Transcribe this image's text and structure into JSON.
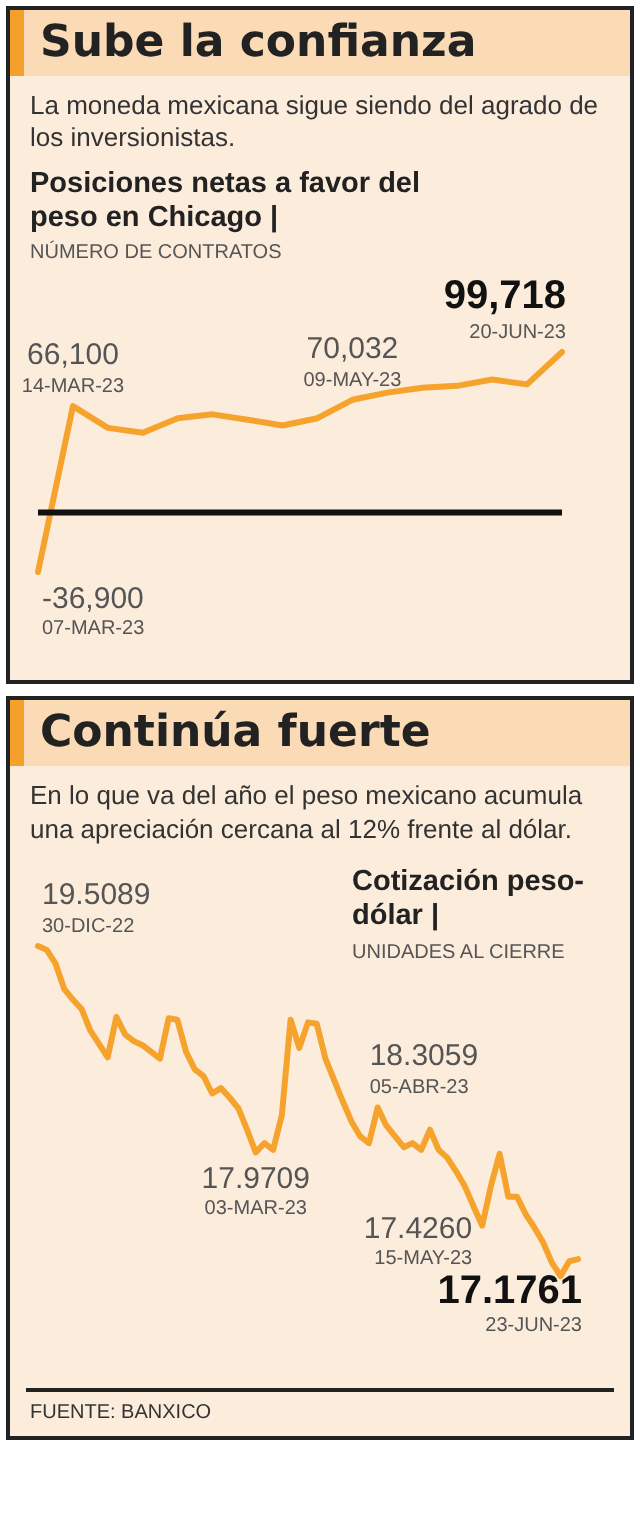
{
  "chart_data": [
    {
      "type": "line",
      "title": "Sube la confianza",
      "subtitle": "La moneda mexicana sigue siendo del agrado de los inversionistas.",
      "ylabel": "Posiciones netas a favor del peso en Chicago |",
      "categories": [
        null,
        null,
        null,
        null,
        null,
        null,
        null,
        null,
        null,
        null,
        null,
        null,
        null,
        null,
        null,
        null
      ],
      "values": [
        -36900,
        66100,
        52600,
        49600,
        58600,
        61000,
        57700,
        54100,
        58600,
        70032,
        74500,
        77500,
        78700,
        82600,
        79600,
        99718
      ],
      "value_labels": [
        "-36,900",
        "66,100",
        null,
        null,
        null,
        null,
        null,
        null,
        null,
        "70,032",
        null,
        null,
        null,
        null,
        null,
        "99,718"
      ],
      "color": "#f5a32c",
      "ref_lines": [
        {
          "axis": "y",
          "value": 0,
          "color": "#111111"
        }
      ],
      "tick_labels": false,
      "annotations": [
        "NÚMERO DE CONTRATOS",
        "07-MAR-23",
        "14-MAR-23",
        "09-MAY-23",
        "20-JUN-23"
      ]
    },
    {
      "type": "line",
      "title": "Continúa fuerte",
      "subtitle": "En lo que va del año el peso mexicano acumula una apreciación cercana al 12% frente al dólar.",
      "ylabel": "Cotización peso-dólar |",
      "categories": [
        null,
        null,
        null,
        null,
        null,
        null,
        null,
        null,
        null,
        null,
        null,
        null,
        null,
        null,
        null,
        null,
        null,
        null,
        null,
        null,
        null,
        null,
        null,
        null,
        null,
        null,
        null,
        null,
        null,
        null,
        null,
        null,
        null,
        null,
        null,
        null,
        null,
        null,
        null,
        null,
        null,
        null,
        null,
        null,
        null,
        null,
        null,
        null,
        null,
        null,
        null,
        null,
        null,
        null,
        null,
        null,
        null,
        null,
        null,
        null,
        null,
        null,
        null
      ],
      "values": [
        19.5089,
        19.48,
        19.38,
        19.19,
        19.11,
        19.04,
        18.88,
        18.78,
        18.68,
        18.98,
        18.85,
        18.8,
        18.77,
        18.72,
        18.67,
        18.97,
        18.96,
        18.72,
        18.59,
        18.54,
        18.41,
        18.45,
        18.38,
        18.3,
        18.14,
        17.9709,
        18.04,
        17.99,
        18.25,
        18.96,
        18.75,
        18.94,
        18.93,
        18.67,
        18.51,
        18.35,
        18.2,
        18.09,
        18.04,
        18.3059,
        18.17,
        18.09,
        18.01,
        18.04,
        17.99,
        18.14,
        17.99,
        17.93,
        17.83,
        17.72,
        17.57,
        17.426,
        17.72,
        17.96,
        17.64,
        17.64,
        17.51,
        17.41,
        17.3,
        17.15,
        17.05,
        17.16,
        17.1761
      ],
      "value_labels": [
        "19.5089",
        null,
        null,
        null,
        null,
        null,
        null,
        null,
        null,
        null,
        null,
        null,
        null,
        null,
        null,
        null,
        null,
        null,
        null,
        null,
        null,
        null,
        null,
        null,
        null,
        "17.9709",
        null,
        null,
        null,
        null,
        null,
        null,
        null,
        null,
        null,
        null,
        null,
        null,
        null,
        "18.3059",
        null,
        null,
        null,
        null,
        null,
        null,
        null,
        null,
        null,
        null,
        null,
        "17.4260",
        null,
        null,
        null,
        null,
        null,
        null,
        null,
        null,
        null,
        null,
        "17.1761"
      ],
      "color": "#f5a32c",
      "tick_labels": false,
      "annotations": [
        "UNIDADES AL CIERRE",
        "30-DIC-22",
        "03-MAR-23",
        "05-ABR-23",
        "15-MAY-23",
        "23-JUN-23",
        "FUENTE: BANXICO"
      ]
    }
  ]
}
